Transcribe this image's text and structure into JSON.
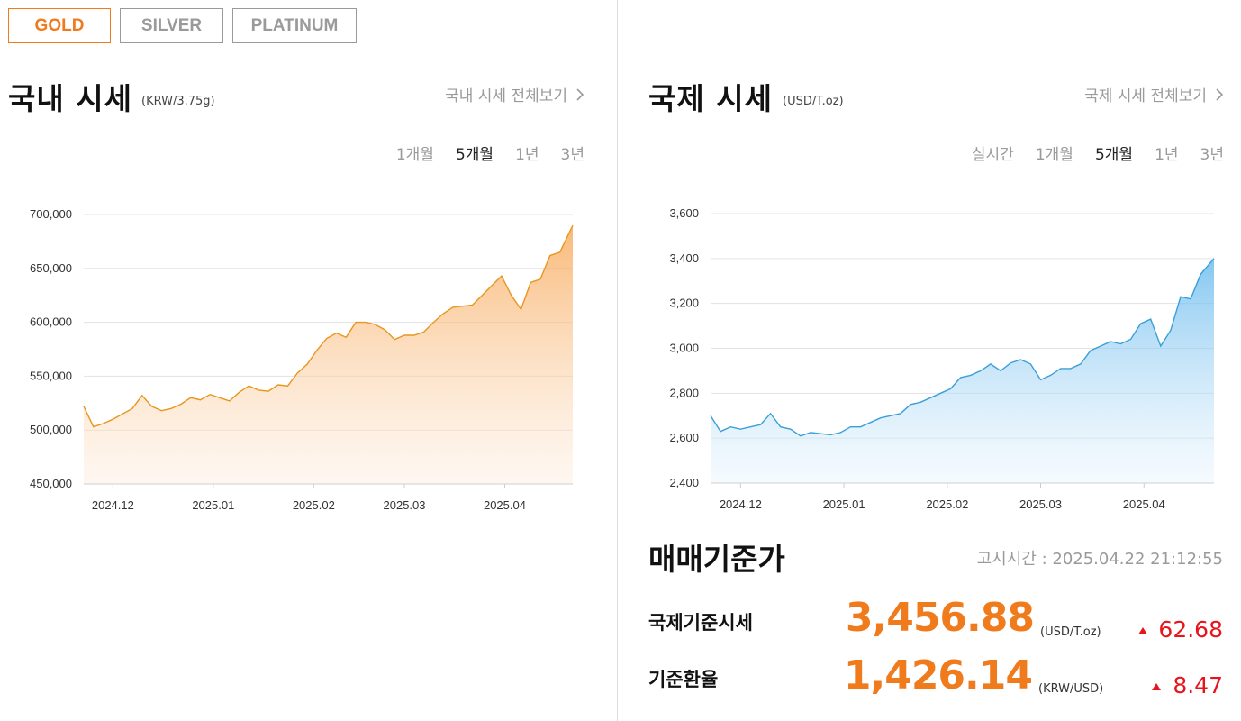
{
  "metal_tabs": [
    "GOLD",
    "SILVER",
    "PLATINUM"
  ],
  "active_tab": "GOLD",
  "domestic": {
    "title": "국내 시세",
    "unit": "(KRW/3.75g)",
    "more_label": "국내 시세 전체보기",
    "periods": [
      "1개월",
      "5개월",
      "1년",
      "3년"
    ],
    "active_period": "5개월"
  },
  "international": {
    "title": "국제 시세",
    "unit": "(USD/T.oz)",
    "more_label": "국제 시세 전체보기",
    "periods": [
      "실시간",
      "1개월",
      "5개월",
      "1년",
      "3년"
    ],
    "active_period": "5개월"
  },
  "reference": {
    "title": "매매기준가",
    "notice_time": "고시시간 : 2025.04.22 21:12:55",
    "rows": [
      {
        "label": "국제기준시세",
        "value": "3,456.88",
        "unit": "(USD/T.oz)",
        "change": "62.68",
        "direction": "up"
      },
      {
        "label": "기준환율",
        "value": "1,426.14",
        "unit": "(KRW/USD)",
        "change": "8.47",
        "direction": "up"
      }
    ]
  },
  "colors": {
    "accent": "#f07b1d",
    "up": "#e8141c",
    "gold_line": "#e8961e",
    "blue_line": "#3a9fd8"
  },
  "chart_data": [
    {
      "type": "area",
      "title": "",
      "xlabel": "",
      "ylabel": "",
      "ylim": [
        450000,
        700000
      ],
      "yticks": [
        "700,000",
        "650,000",
        "600,000",
        "550,000",
        "500,000",
        "450,000"
      ],
      "ytick_values": [
        700000,
        650000,
        600000,
        550000,
        500000,
        450000
      ],
      "x_ticks": [
        "2024.12",
        "2025.01",
        "2025.02",
        "2025.03",
        "2025.04"
      ],
      "x_tick_dates": [
        "2024-12-01",
        "2025-01-01",
        "2025-02-01",
        "2025-03-01",
        "2025-04-01"
      ],
      "x_range": [
        "2024-11-22",
        "2025-04-22"
      ],
      "grid": true,
      "series": [
        {
          "x": [
            "2024-11-22",
            "2024-11-25",
            "2024-11-28",
            "2024-12-01",
            "2024-12-04",
            "2024-12-07",
            "2024-12-10",
            "2024-12-13",
            "2024-12-16",
            "2024-12-19",
            "2024-12-22",
            "2024-12-25",
            "2024-12-28",
            "2024-12-31",
            "2025-01-03",
            "2025-01-06",
            "2025-01-09",
            "2025-01-12",
            "2025-01-15",
            "2025-01-18",
            "2025-01-21",
            "2025-01-24",
            "2025-01-27",
            "2025-01-30",
            "2025-02-02",
            "2025-02-05",
            "2025-02-08",
            "2025-02-11",
            "2025-02-14",
            "2025-02-17",
            "2025-02-20",
            "2025-02-23",
            "2025-02-26",
            "2025-03-01",
            "2025-03-04",
            "2025-03-07",
            "2025-03-10",
            "2025-03-13",
            "2025-03-16",
            "2025-03-19",
            "2025-03-22",
            "2025-03-25",
            "2025-03-28",
            "2025-03-31",
            "2025-04-03",
            "2025-04-06",
            "2025-04-09",
            "2025-04-12",
            "2025-04-15",
            "2025-04-18",
            "2025-04-22"
          ],
          "values": [
            522000,
            503000,
            506000,
            510000,
            515000,
            520000,
            532000,
            522000,
            518000,
            520000,
            524000,
            530000,
            528000,
            533000,
            530000,
            527000,
            535000,
            541000,
            537000,
            536000,
            542000,
            541000,
            553000,
            561000,
            574000,
            585000,
            590000,
            586000,
            600000,
            600000,
            598000,
            593000,
            584000,
            588000,
            588000,
            591000,
            600000,
            608000,
            614000,
            615000,
            616000,
            625000,
            634000,
            643000,
            625000,
            612000,
            637000,
            640000,
            662000,
            665000,
            690000
          ]
        }
      ]
    },
    {
      "type": "area",
      "title": "",
      "xlabel": "",
      "ylabel": "",
      "ylim": [
        2400,
        3600
      ],
      "yticks": [
        "3,600",
        "3,400",
        "3,200",
        "3,000",
        "2,800",
        "2,600",
        "2,400"
      ],
      "ytick_values": [
        3600,
        3400,
        3200,
        3000,
        2800,
        2600,
        2400
      ],
      "x_ticks": [
        "2024.12",
        "2025.01",
        "2025.02",
        "2025.03",
        "2025.04"
      ],
      "x_tick_dates": [
        "2024-12-01",
        "2025-01-01",
        "2025-02-01",
        "2025-03-01",
        "2025-04-01"
      ],
      "x_range": [
        "2024-11-22",
        "2025-04-22"
      ],
      "grid": true,
      "series": [
        {
          "x": [
            "2024-11-22",
            "2024-11-25",
            "2024-11-28",
            "2024-12-01",
            "2024-12-04",
            "2024-12-07",
            "2024-12-10",
            "2024-12-13",
            "2024-12-16",
            "2024-12-19",
            "2024-12-22",
            "2024-12-25",
            "2024-12-28",
            "2024-12-31",
            "2025-01-03",
            "2025-01-06",
            "2025-01-09",
            "2025-01-12",
            "2025-01-15",
            "2025-01-18",
            "2025-01-21",
            "2025-01-24",
            "2025-01-27",
            "2025-01-30",
            "2025-02-02",
            "2025-02-05",
            "2025-02-08",
            "2025-02-11",
            "2025-02-14",
            "2025-02-17",
            "2025-02-20",
            "2025-02-23",
            "2025-02-26",
            "2025-03-01",
            "2025-03-04",
            "2025-03-07",
            "2025-03-10",
            "2025-03-13",
            "2025-03-16",
            "2025-03-19",
            "2025-03-22",
            "2025-03-25",
            "2025-03-28",
            "2025-03-31",
            "2025-04-03",
            "2025-04-06",
            "2025-04-09",
            "2025-04-12",
            "2025-04-15",
            "2025-04-18",
            "2025-04-22"
          ],
          "values": [
            2700,
            2630,
            2650,
            2640,
            2650,
            2660,
            2710,
            2650,
            2640,
            2610,
            2625,
            2620,
            2615,
            2625,
            2650,
            2650,
            2670,
            2690,
            2700,
            2710,
            2750,
            2760,
            2780,
            2800,
            2820,
            2870,
            2880,
            2900,
            2930,
            2900,
            2935,
            2950,
            2930,
            2860,
            2880,
            2910,
            2910,
            2930,
            2990,
            3010,
            3030,
            3020,
            3040,
            3110,
            3130,
            3010,
            3080,
            3230,
            3220,
            3330,
            3400
          ]
        }
      ]
    }
  ]
}
